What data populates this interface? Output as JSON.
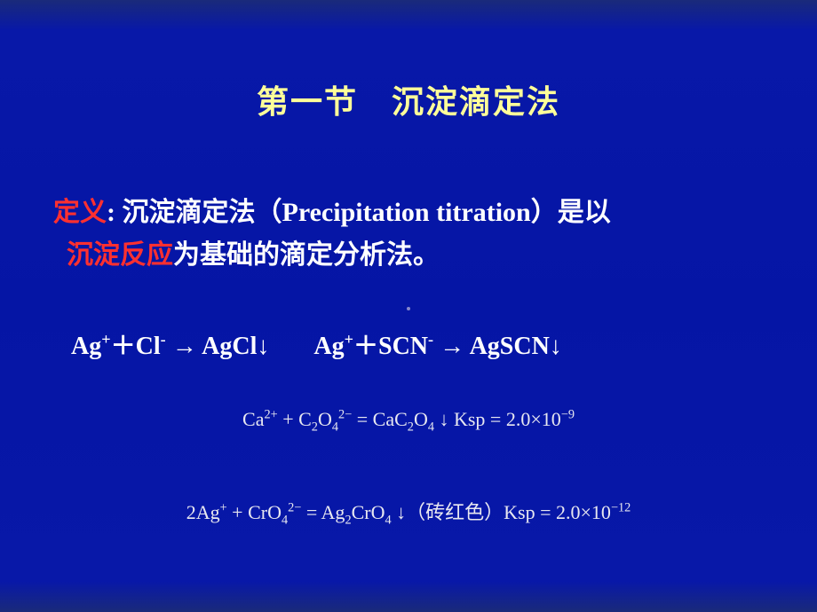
{
  "slide": {
    "background_gradient": [
      "#1a2a7a",
      "#0818a8",
      "#0515a5",
      "#0818a8",
      "#1a2a7a"
    ],
    "title": {
      "text": "第一节　沉淀滴定法",
      "color": "#ffff99",
      "fontsize": 36
    },
    "definition": {
      "label": "定义",
      "label_color": "#ff3030",
      "colon": ": ",
      "part1": "沉淀滴定法（",
      "english": "Precipitation titration",
      "part2": "）是以",
      "red_phrase": "沉淀反应",
      "part3": "为基础的滴定分析法。",
      "text_color": "#ffffff",
      "fontsize": 30
    },
    "main_reactions": {
      "color": "#ffffff",
      "fontsize": 28,
      "r1": {
        "left_ion1": "Ag",
        "left_ion1_charge": "+",
        "plus": "＋",
        "left_ion2": "Cl",
        "left_ion2_charge": "-",
        "arrow": " → ",
        "product": "AgCl",
        "down": "↓"
      },
      "r2": {
        "left_ion1": "Ag",
        "left_ion1_charge": "+",
        "plus": "＋",
        "left_ion2": "SCN",
        "left_ion2_charge": "-",
        "arrow": " → ",
        "product": "AgSCN",
        "down": "↓"
      }
    },
    "eqn1": {
      "text_color": "#e8e8f0",
      "fontsize": 22,
      "ca": "Ca",
      "ca_charge": "2+",
      "plus": " + ",
      "c2o4_C": "C",
      "c2o4_2sub": "2",
      "c2o4_O": "O",
      "c2o4_4sub": "4",
      "c2o4_charge": "2−",
      "eq": " = ",
      "cac2o4_Ca": "Ca",
      "cac2o4_C": "C",
      "cac2o4_2": "2",
      "cac2o4_O": "O",
      "cac2o4_4": "4",
      "down": " ↓ ",
      "ksp_label": "Ksp = ",
      "ksp_val": "2.0×10",
      "ksp_exp": "−9"
    },
    "eqn2": {
      "text_color": "#e8e8f0",
      "fontsize": 22,
      "coef": "2",
      "ag": "Ag",
      "ag_charge": "+",
      "plus": " + ",
      "cro4_Cr": "Cr",
      "cro4_O": "O",
      "cro4_4": "4",
      "cro4_charge": "2−",
      "eq": " = ",
      "ag2cro4_Ag": "Ag",
      "ag2cro4_2": "2",
      "ag2cro4_Cr": "Cr",
      "ag2cro4_O": "O",
      "ag2cro4_4": "4",
      "down": " ↓",
      "note": "（砖红色）",
      "ksp_label": "Ksp = ",
      "ksp_val": "2.0×10",
      "ksp_exp": "−12"
    }
  }
}
